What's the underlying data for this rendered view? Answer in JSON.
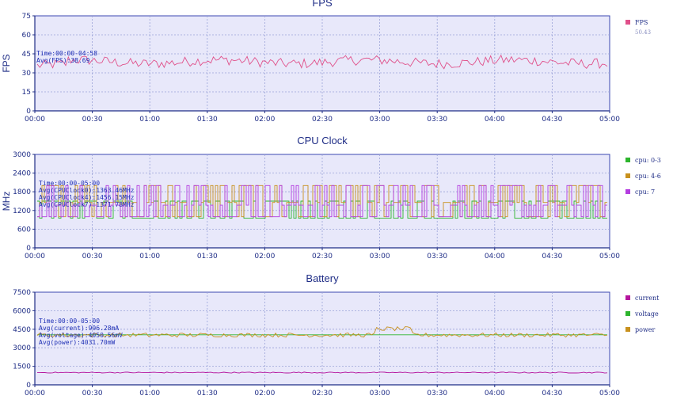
{
  "chart_data": [
    {
      "type": "line",
      "title": "FPS",
      "ylabel": "FPS",
      "ylim": [
        0,
        75
      ],
      "yticks": [
        "0",
        "15",
        "30",
        "45",
        "60",
        "75"
      ],
      "xlim": [
        "00:00",
        "05:00"
      ],
      "xticks": [
        "00:00",
        "00:30",
        "01:00",
        "01:30",
        "02:00",
        "02:30",
        "03:00",
        "03:30",
        "04:00",
        "04:30",
        "05:00"
      ],
      "grid": true,
      "legend_position": "right",
      "annotations": [
        "Time:00:00-04:58",
        "Avg(FPS):38.69"
      ],
      "colors": {
        "FPS": "#e0508a"
      },
      "legend_values": {
        "FPS": "50.43"
      },
      "series": [
        {
          "name": "FPS",
          "base": 38.7,
          "amp": 4,
          "legend_value": "50.43"
        }
      ]
    },
    {
      "type": "line",
      "title": "CPU Clock",
      "ylabel": "MHz",
      "ylim": [
        0,
        3000
      ],
      "yticks": [
        "0",
        "600",
        "1200",
        "1800",
        "2400",
        "3000"
      ],
      "xlim": [
        "00:00",
        "05:00"
      ],
      "xticks": [
        "00:00",
        "00:30",
        "01:00",
        "01:30",
        "02:00",
        "02:30",
        "03:00",
        "03:30",
        "04:00",
        "04:30",
        "05:00"
      ],
      "grid": true,
      "legend_position": "right",
      "annotations": [
        "Time:00:00-05:00",
        "Avg(CPUClock0):1363.46MHz",
        "Avg(CPUClock4):1456.15MHz",
        "Avg(CPUClock7):1371.78MHz"
      ],
      "colors": {
        "cpu: 0-3": "#2db52d",
        "cpu: 4-6": "#c8911e",
        "cpu: 7": "#b43de0"
      },
      "series": [
        {
          "name": "cpu: 0-3",
          "base": 1363,
          "low": 950,
          "high": 1500
        },
        {
          "name": "cpu: 4-6",
          "base": 1456,
          "low": 1000,
          "high": 2000
        },
        {
          "name": "cpu: 7",
          "base": 1371,
          "low": 1000,
          "high": 2000
        }
      ]
    },
    {
      "type": "line",
      "title": "Battery",
      "ylabel": "",
      "ylim": [
        0,
        7500
      ],
      "yticks": [
        "0",
        "1500",
        "3000",
        "4500",
        "6000",
        "7500"
      ],
      "xlim": [
        "00:00",
        "05:00"
      ],
      "xticks": [
        "00:00",
        "00:30",
        "01:00",
        "01:30",
        "02:00",
        "02:30",
        "03:00",
        "03:30",
        "04:00",
        "04:30",
        "05:00"
      ],
      "grid": true,
      "legend_position": "right",
      "annotations": [
        "Time:00:00-05:00",
        "Avg(current):996.28mA",
        "Avg(voltage):4050.56mV",
        "Avg(power):4031.70mW"
      ],
      "colors": {
        "current": "#b5169e",
        "voltage": "#2db52d",
        "power": "#c8911e"
      },
      "series": [
        {
          "name": "current",
          "base": 996
        },
        {
          "name": "voltage",
          "base": 4050
        },
        {
          "name": "power",
          "base": 4031
        }
      ]
    }
  ]
}
